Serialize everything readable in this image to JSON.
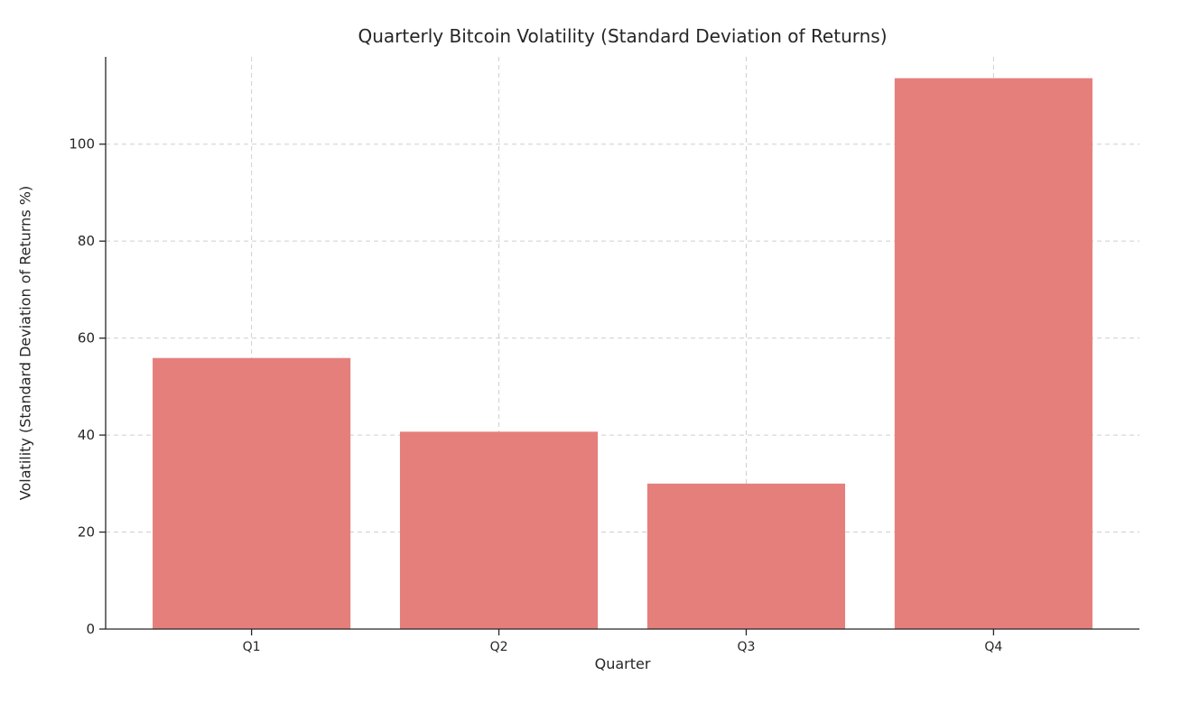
{
  "chart_data": {
    "type": "bar",
    "title": "Quarterly Bitcoin Volatility (Standard Deviation of Returns)",
    "xlabel": "Quarter",
    "ylabel": "Volatility (Standard Deviation of Returns %)",
    "categories": [
      "Q1",
      "Q2",
      "Q3",
      "Q4"
    ],
    "values": [
      55.9,
      40.7,
      30.0,
      113.6
    ],
    "yticks": [
      0,
      20,
      40,
      60,
      80,
      100
    ],
    "ylim": [
      0,
      118
    ],
    "bar_color": "#e57f7c",
    "grid": true,
    "grid_style": "dashed",
    "grid_color": "#cfcfcf",
    "axis_color": "#262626",
    "tick_label_color": "#262626",
    "background": "#ffffff",
    "legend": null
  }
}
